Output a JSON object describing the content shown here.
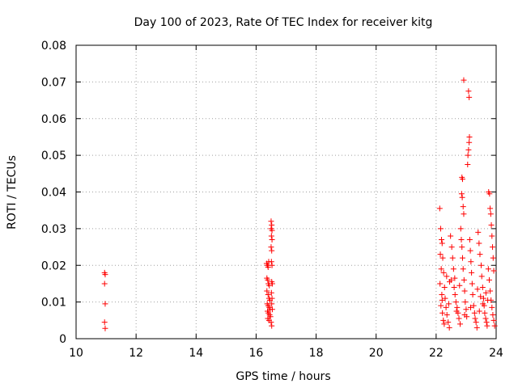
{
  "chart_data": {
    "type": "scatter",
    "title": "Day 100 of 2023, Rate Of TEC Index for receiver kitg",
    "xlabel": "GPS time / hours",
    "ylabel": "ROTI / TECUs",
    "xlim": [
      10,
      24
    ],
    "ylim": [
      0,
      0.08
    ],
    "x_ticks": [
      "10",
      "12",
      "14",
      "16",
      "18",
      "20",
      "22",
      "24"
    ],
    "y_ticks": [
      "0",
      "0.01",
      "0.02",
      "0.03",
      "0.04",
      "0.05",
      "0.06",
      "0.07",
      "0.08"
    ],
    "grid": true,
    "marker": "+",
    "series": [
      {
        "name": "ROTI",
        "color": "#ff0000",
        "points": [
          [
            10.95,
            0.018
          ],
          [
            10.97,
            0.0175
          ],
          [
            10.95,
            0.015
          ],
          [
            10.97,
            0.0095
          ],
          [
            10.95,
            0.0045
          ],
          [
            10.97,
            0.0028
          ],
          [
            16.35,
            0.0205
          ],
          [
            16.38,
            0.02
          ],
          [
            16.4,
            0.0195
          ],
          [
            16.42,
            0.021
          ],
          [
            16.36,
            0.0165
          ],
          [
            16.39,
            0.016
          ],
          [
            16.41,
            0.015
          ],
          [
            16.44,
            0.0145
          ],
          [
            16.36,
            0.013
          ],
          [
            16.4,
            0.012
          ],
          [
            16.43,
            0.011
          ],
          [
            16.46,
            0.0105
          ],
          [
            16.37,
            0.0095
          ],
          [
            16.4,
            0.009
          ],
          [
            16.44,
            0.0085
          ],
          [
            16.47,
            0.008
          ],
          [
            16.38,
            0.0075
          ],
          [
            16.41,
            0.007
          ],
          [
            16.45,
            0.0065
          ],
          [
            16.48,
            0.006
          ],
          [
            16.39,
            0.0055
          ],
          [
            16.43,
            0.005
          ],
          [
            16.5,
            0.0045
          ],
          [
            16.52,
            0.0035
          ],
          [
            16.5,
            0.032
          ],
          [
            16.52,
            0.031
          ],
          [
            16.5,
            0.03
          ],
          [
            16.53,
            0.0295
          ],
          [
            16.51,
            0.028
          ],
          [
            16.53,
            0.027
          ],
          [
            16.5,
            0.025
          ],
          [
            16.52,
            0.024
          ],
          [
            16.51,
            0.021
          ],
          [
            16.53,
            0.02
          ],
          [
            16.52,
            0.0155
          ],
          [
            16.54,
            0.015
          ],
          [
            16.51,
            0.0125
          ],
          [
            16.53,
            0.011
          ],
          [
            16.52,
            0.0095
          ],
          [
            16.54,
            0.008
          ],
          [
            22.12,
            0.0355
          ],
          [
            22.15,
            0.03
          ],
          [
            22.18,
            0.027
          ],
          [
            22.2,
            0.026
          ],
          [
            22.14,
            0.023
          ],
          [
            22.22,
            0.022
          ],
          [
            22.17,
            0.019
          ],
          [
            22.25,
            0.018
          ],
          [
            22.13,
            0.015
          ],
          [
            22.28,
            0.014
          ],
          [
            22.19,
            0.012
          ],
          [
            22.3,
            0.011
          ],
          [
            22.16,
            0.009
          ],
          [
            22.33,
            0.0085
          ],
          [
            22.21,
            0.007
          ],
          [
            22.36,
            0.0065
          ],
          [
            22.24,
            0.005
          ],
          [
            22.4,
            0.0045
          ],
          [
            22.27,
            0.004
          ],
          [
            22.44,
            0.003
          ],
          [
            22.48,
            0.028
          ],
          [
            22.52,
            0.025
          ],
          [
            22.55,
            0.022
          ],
          [
            22.58,
            0.019
          ],
          [
            22.5,
            0.016
          ],
          [
            22.6,
            0.014
          ],
          [
            22.63,
            0.012
          ],
          [
            22.66,
            0.01
          ],
          [
            22.7,
            0.0085
          ],
          [
            22.73,
            0.007
          ],
          [
            22.76,
            0.0055
          ],
          [
            22.8,
            0.004
          ],
          [
            22.82,
            0.03
          ],
          [
            22.84,
            0.027
          ],
          [
            22.86,
            0.025
          ],
          [
            22.88,
            0.022
          ],
          [
            22.85,
            0.0395
          ],
          [
            22.87,
            0.0385
          ],
          [
            22.9,
            0.036
          ],
          [
            22.92,
            0.034
          ],
          [
            22.86,
            0.044
          ],
          [
            22.88,
            0.0435
          ],
          [
            22.9,
            0.019
          ],
          [
            22.93,
            0.016
          ],
          [
            22.95,
            0.013
          ],
          [
            22.97,
            0.01
          ],
          [
            23.0,
            0.008
          ],
          [
            23.02,
            0.006
          ],
          [
            22.92,
            0.0705
          ],
          [
            23.08,
            0.0675
          ],
          [
            23.1,
            0.0658
          ],
          [
            23.05,
            0.0475
          ],
          [
            23.06,
            0.05
          ],
          [
            23.08,
            0.0515
          ],
          [
            23.1,
            0.0535
          ],
          [
            23.11,
            0.055
          ],
          [
            23.12,
            0.027
          ],
          [
            23.14,
            0.024
          ],
          [
            23.16,
            0.021
          ],
          [
            23.18,
            0.018
          ],
          [
            23.2,
            0.015
          ],
          [
            23.22,
            0.012
          ],
          [
            23.25,
            0.009
          ],
          [
            23.28,
            0.007
          ],
          [
            23.3,
            0.0055
          ],
          [
            23.33,
            0.0045
          ],
          [
            23.36,
            0.003
          ],
          [
            23.4,
            0.029
          ],
          [
            23.43,
            0.026
          ],
          [
            23.46,
            0.023
          ],
          [
            23.5,
            0.02
          ],
          [
            23.52,
            0.017
          ],
          [
            23.55,
            0.014
          ],
          [
            23.58,
            0.011
          ],
          [
            23.6,
            0.009
          ],
          [
            23.62,
            0.007
          ],
          [
            23.65,
            0.0055
          ],
          [
            23.68,
            0.0045
          ],
          [
            23.7,
            0.0035
          ],
          [
            23.75,
            0.04
          ],
          [
            23.78,
            0.0395
          ],
          [
            23.8,
            0.0355
          ],
          [
            23.82,
            0.034
          ],
          [
            23.84,
            0.031
          ],
          [
            23.86,
            0.028
          ],
          [
            23.88,
            0.025
          ],
          [
            23.9,
            0.022
          ],
          [
            23.74,
            0.019
          ],
          [
            23.77,
            0.016
          ],
          [
            23.8,
            0.013
          ],
          [
            23.83,
            0.0105
          ],
          [
            23.86,
            0.0085
          ],
          [
            23.89,
            0.0065
          ],
          [
            23.92,
            0.005
          ],
          [
            23.95,
            0.0035
          ],
          [
            22.35,
            0.017
          ],
          [
            22.45,
            0.0155
          ],
          [
            22.62,
            0.0165
          ],
          [
            22.78,
            0.0145
          ],
          [
            23.38,
            0.0135
          ],
          [
            23.48,
            0.0115
          ],
          [
            23.56,
            0.0095
          ],
          [
            23.66,
            0.0125
          ],
          [
            22.2,
            0.0105
          ],
          [
            22.42,
            0.0095
          ],
          [
            22.68,
            0.0075
          ],
          [
            22.95,
            0.0065
          ],
          [
            23.15,
            0.0085
          ],
          [
            23.44,
            0.0075
          ],
          [
            23.72,
            0.0105
          ],
          [
            23.92,
            0.0185
          ]
        ]
      }
    ]
  }
}
